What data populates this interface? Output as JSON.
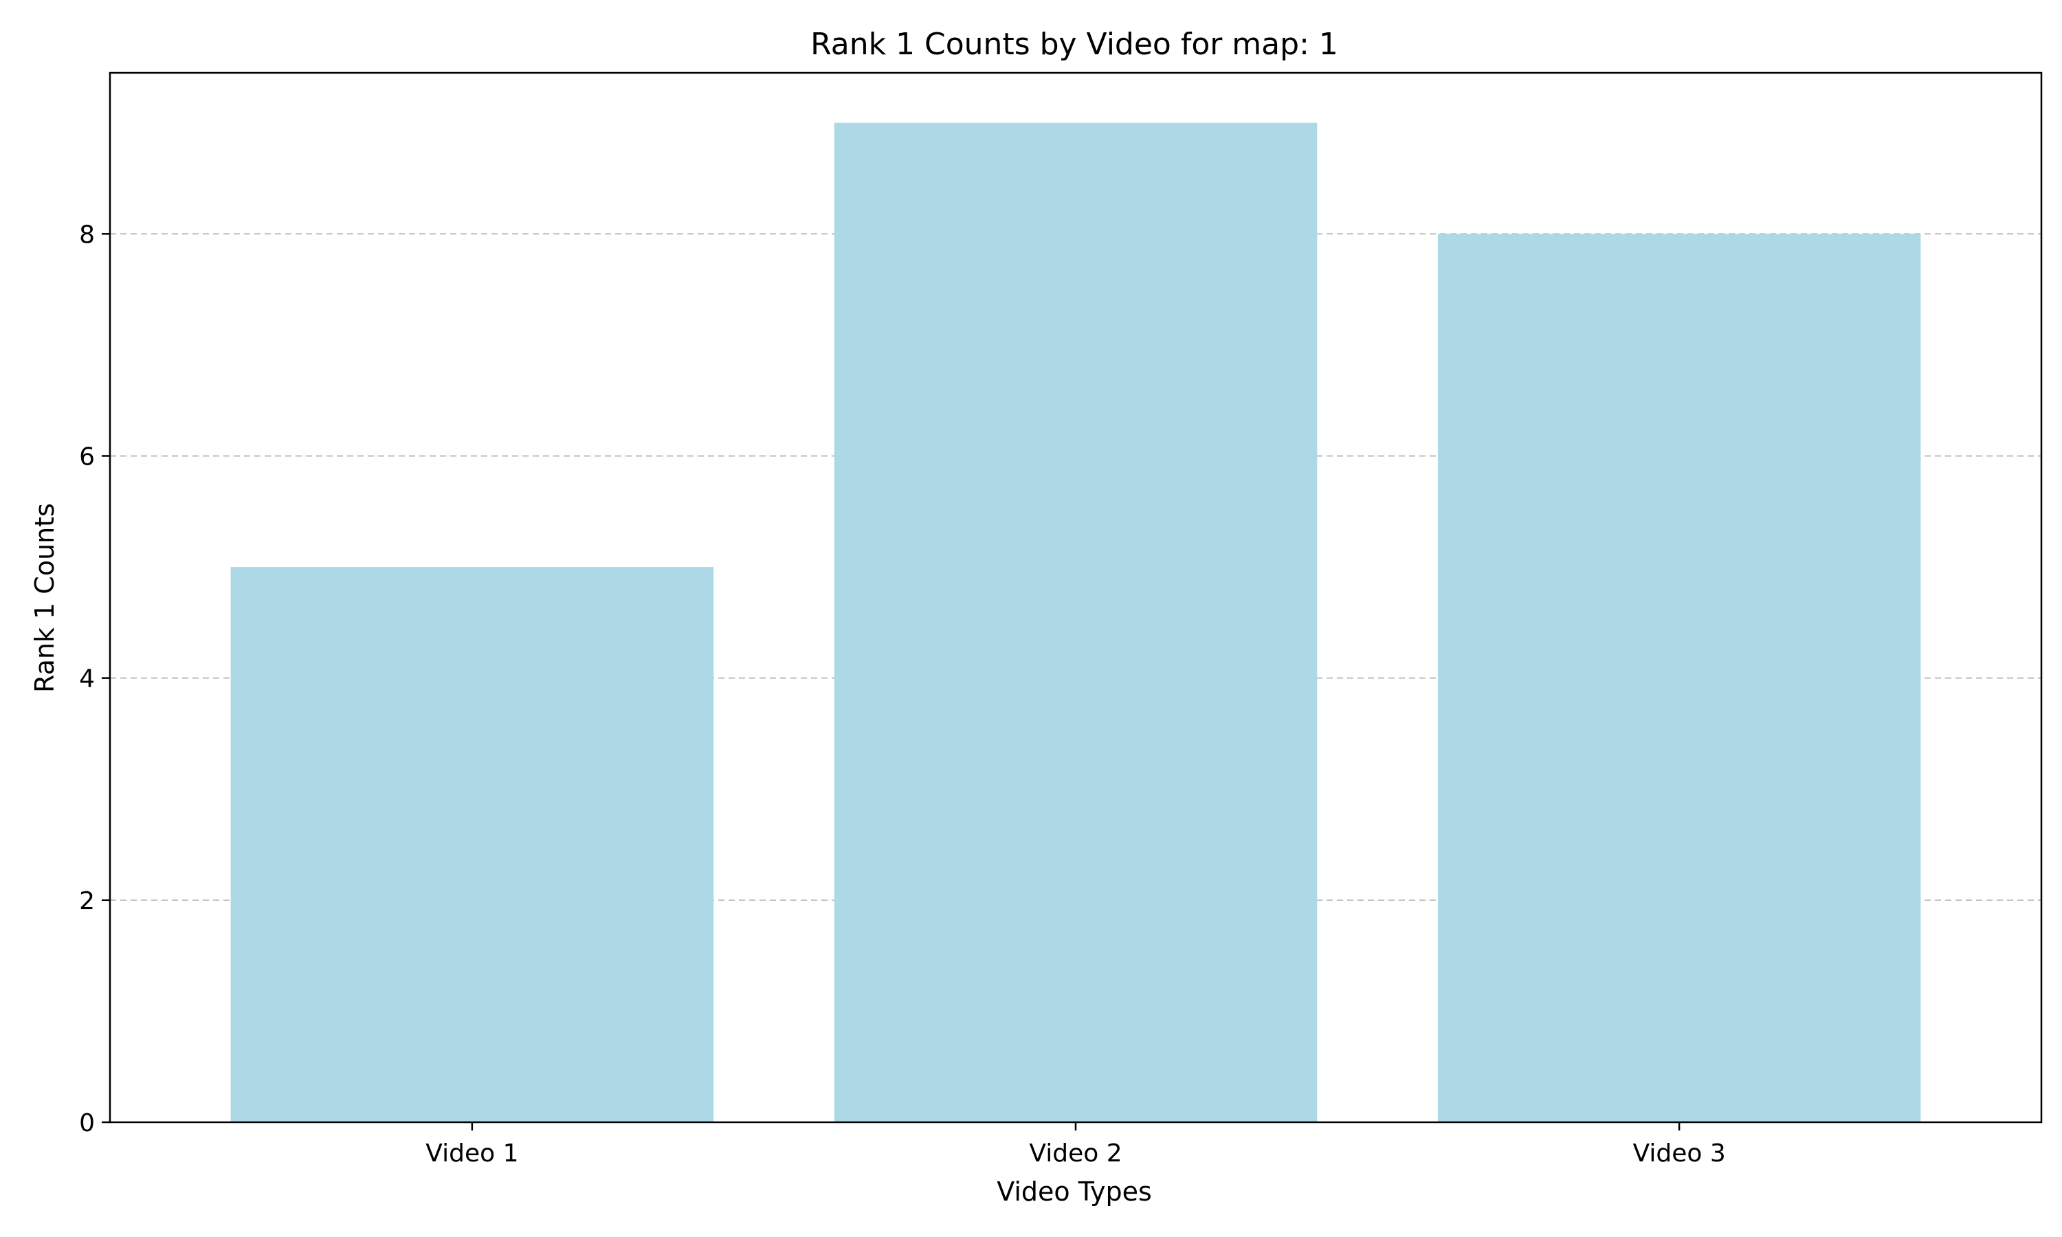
{
  "chart_data": {
    "type": "bar",
    "title": "Rank 1 Counts by Video for map: 1",
    "xlabel": "Video Types",
    "ylabel": "Rank 1 Counts",
    "categories": [
      "Video 1",
      "Video 2",
      "Video 3"
    ],
    "values": [
      5,
      9,
      8
    ],
    "ylim": [
      0,
      9.45
    ],
    "yticks": [
      0,
      2,
      4,
      6,
      8
    ],
    "grid": "y-axis, dashed",
    "legend": "none",
    "bar_color": "#add8e6"
  }
}
